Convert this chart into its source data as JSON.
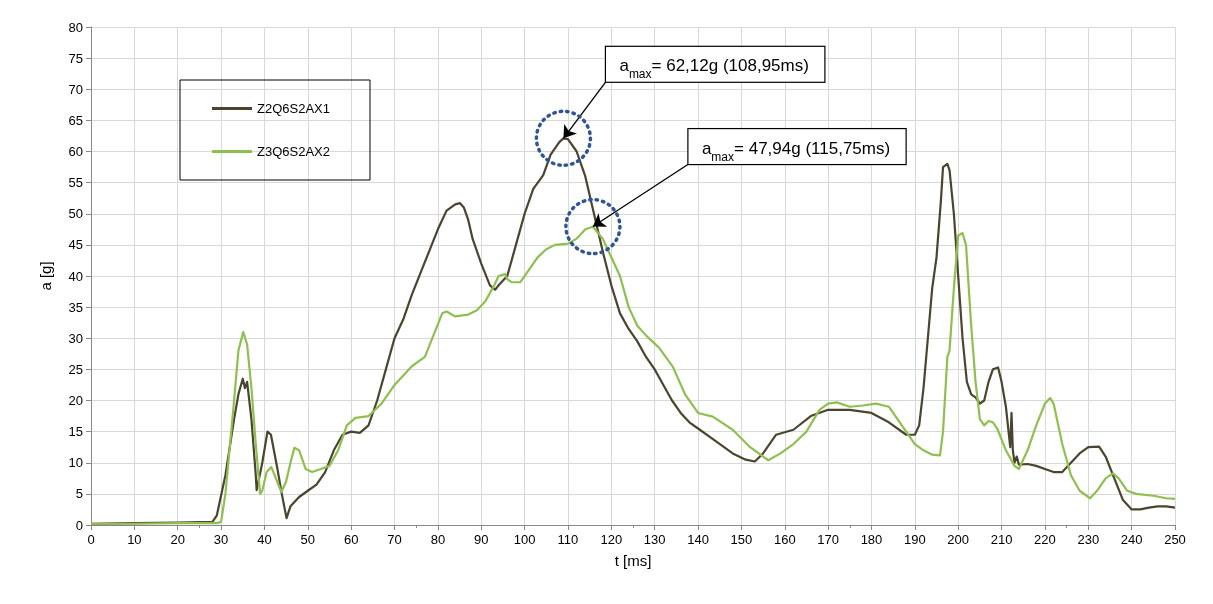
{
  "chart_data": {
    "type": "line",
    "xlabel": "t [ms]",
    "ylabel": "a [g]",
    "xlim": [
      0,
      250
    ],
    "xticks": [
      0,
      10,
      20,
      30,
      40,
      50,
      60,
      70,
      80,
      90,
      100,
      110,
      120,
      130,
      140,
      150,
      160,
      170,
      180,
      190,
      200,
      210,
      220,
      230,
      240,
      250
    ],
    "ylim": [
      0,
      80
    ],
    "yticks": [
      0,
      5,
      10,
      15,
      20,
      25,
      30,
      35,
      40,
      45,
      50,
      55,
      60,
      65,
      70,
      75,
      80
    ],
    "grid": true,
    "legend": "top left",
    "marker": "none",
    "line_style": "solid",
    "annotations": [
      {
        "text": "a$_{max}$= 62,12g (108,95ms)",
        "x": 108.95,
        "y": 62.12
      },
      {
        "text": "a$_{max}$= 47,94g (115,75ms)",
        "x": 115.75,
        "y": 47.94
      }
    ],
    "series": [
      {
        "name": "Z2Q6S2AX1",
        "color": "#4b452f",
        "x": [
          0,
          10,
          20,
          28,
          29,
          31,
          33,
          34,
          35,
          35.5,
          36,
          37,
          38,
          38.2,
          39.5,
          40.7,
          41.5,
          43,
          44,
          45.1,
          46,
          48,
          50,
          52,
          54,
          56,
          58,
          60,
          62,
          64,
          66,
          68,
          70,
          72,
          74,
          76,
          78,
          80,
          82,
          84,
          85.1,
          86,
          87,
          88,
          90,
          92,
          93.2,
          94,
          96,
          98,
          100,
          102,
          104.3,
          106,
          108,
          108.95,
          110,
          112,
          114,
          116,
          118,
          120,
          122,
          124,
          126,
          128,
          130,
          132,
          134,
          136,
          138,
          140,
          144,
          148,
          151,
          153.1,
          155,
          158,
          162,
          166,
          170,
          175,
          180,
          184,
          188,
          190,
          191,
          192,
          193,
          194,
          195,
          196,
          196.5,
          197.5,
          198,
          199,
          200,
          201,
          202,
          203,
          204,
          205,
          206,
          207,
          208,
          209.2,
          210,
          211,
          212,
          212.3,
          212.6,
          213,
          213.5,
          214,
          216,
          218,
          220,
          222,
          224,
          226,
          228,
          230,
          232.5,
          234,
          236,
          238,
          240,
          242,
          244,
          246,
          248,
          250
        ],
        "values": [
          0.2,
          0.3,
          0.4,
          0.5,
          1.5,
          8,
          17,
          21,
          23.5,
          22,
          23,
          17,
          8,
          5.6,
          10,
          15,
          14.5,
          9,
          5,
          1.1,
          3,
          4.5,
          5.5,
          6.5,
          8.5,
          12,
          14.5,
          15,
          14.8,
          16,
          20,
          25,
          30,
          33,
          37,
          40.5,
          44,
          47.5,
          50.5,
          51.5,
          51.7,
          51,
          49,
          46,
          42,
          38.5,
          37.8,
          38.5,
          40,
          45,
          50,
          54,
          56.2,
          59.5,
          61.5,
          62.1,
          62,
          60,
          56,
          50,
          44,
          38.5,
          34,
          31.5,
          29.5,
          27,
          25,
          22.5,
          20,
          18,
          16.5,
          15.5,
          13.5,
          11.5,
          10.5,
          10.2,
          11.5,
          14.5,
          15.3,
          17.5,
          18.5,
          18.5,
          18,
          16.5,
          14.5,
          14.5,
          16,
          22,
          30,
          38,
          43,
          52,
          57.5,
          58,
          57,
          50,
          40,
          30,
          23,
          21,
          20.5,
          19.5,
          20,
          23,
          25,
          25.3,
          23,
          19,
          12.5,
          18,
          12,
          10,
          11,
          9.7,
          9.8,
          9.5,
          9,
          8.5,
          8.5,
          10,
          11.5,
          12.5,
          12.6,
          11,
          7.5,
          4,
          2.5,
          2.5,
          2.8,
          3,
          3,
          2.8
        ]
      },
      {
        "name": "Z3Q6S2AX2",
        "color": "#8fc04f",
        "x": [
          0,
          10,
          20,
          29,
          30,
          31,
          33,
          34,
          35.1,
          36,
          37,
          38,
          39,
          39.5,
          40.5,
          41.6,
          43.9,
          45,
          46,
          46.9,
          48,
          49.5,
          51,
          53,
          55,
          57,
          59,
          61,
          64,
          67,
          70,
          74,
          77,
          79,
          81,
          82,
          84,
          87,
          89,
          91,
          93,
          94,
          95.5,
          96,
          97,
          99,
          101,
          103,
          105,
          107,
          110,
          112,
          114,
          115.75,
          118,
          120,
          122,
          124,
          126,
          128.2,
          131,
          134.2,
          137,
          140,
          143.4,
          148,
          152,
          156.2,
          159,
          162,
          165,
          168,
          170,
          172,
          175,
          178,
          181,
          184,
          186,
          188,
          190,
          192,
          194,
          195.8,
          196.5,
          197.5,
          198,
          199,
          200,
          201,
          201.8,
          203,
          204,
          205,
          206,
          207,
          208,
          209,
          211,
          213,
          214,
          216,
          218,
          220,
          221.2,
          222,
          224,
          226,
          228,
          230.4,
          232,
          234,
          235.7,
          237,
          239,
          241,
          245,
          248,
          250
        ],
        "values": [
          0.2,
          0.2,
          0.3,
          0.3,
          0.5,
          5,
          20,
          28,
          31,
          29,
          22,
          13,
          5,
          5.5,
          8.5,
          9.3,
          5.3,
          7,
          10,
          12.4,
          12,
          9,
          8.5,
          9,
          9.5,
          12,
          16,
          17.2,
          17.5,
          19.5,
          22.5,
          25.5,
          27,
          30.5,
          34,
          34.3,
          33.5,
          33.8,
          34.5,
          36,
          38.5,
          40,
          40.3,
          39.5,
          39,
          39,
          41,
          43,
          44.3,
          45,
          45.2,
          46,
          47.5,
          47.9,
          46,
          43,
          40,
          35,
          32,
          30.3,
          28.5,
          25.4,
          21,
          18,
          17.4,
          15.3,
          12.5,
          10.4,
          11.5,
          13,
          15,
          18.5,
          19.5,
          19.7,
          19,
          19.2,
          19.5,
          19,
          17,
          15,
          13,
          12,
          11.3,
          11.2,
          15,
          27,
          28,
          38,
          46.5,
          46.9,
          45,
          32,
          23,
          17,
          16,
          16.7,
          16.5,
          15.5,
          12,
          9.5,
          9,
          12,
          16,
          19.5,
          20.4,
          19.5,
          13,
          8,
          5.5,
          4.3,
          5.5,
          7.5,
          8.3,
          7.5,
          5.5,
          5,
          4.7,
          4.3,
          4.2
        ]
      }
    ]
  }
}
